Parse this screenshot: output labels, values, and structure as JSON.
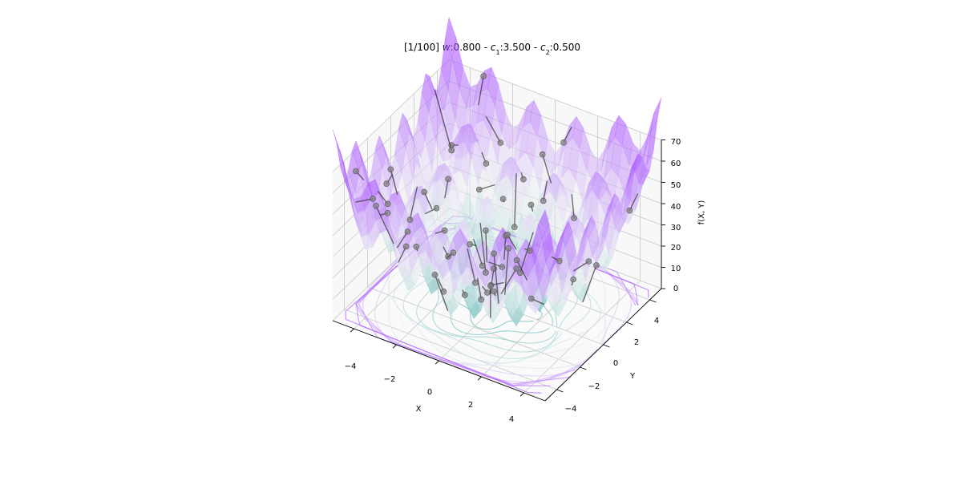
{
  "chart_data": {
    "type": "surface",
    "title_parts": {
      "prefix": "[1/100] ",
      "w_symbol": "w",
      "w_value": ":0.800 - ",
      "c1_symbol": "c",
      "c1_sub": "1",
      "c1_value": ":3.500 - ",
      "c2_symbol": "c",
      "c2_sub": "2",
      "c2_value": ":0.500"
    },
    "xlabel": "X",
    "ylabel": "Y",
    "zlabel": "f(X, Y)",
    "x_ticks": [
      "−4",
      "−2",
      "0",
      "2",
      "4"
    ],
    "y_ticks": [
      "−4",
      "−2",
      "0",
      "2",
      "4"
    ],
    "z_ticks": [
      "0",
      "10",
      "20",
      "30",
      "40",
      "50",
      "60",
      "70"
    ],
    "xlim": [
      -5,
      5
    ],
    "ylim": [
      -5,
      5
    ],
    "zlim": [
      0,
      70
    ],
    "grid": true,
    "colors": {
      "low": "#5fb4b4",
      "mid": "#eef3f3",
      "high": "#a64dff",
      "particle": "#808080"
    }
  }
}
